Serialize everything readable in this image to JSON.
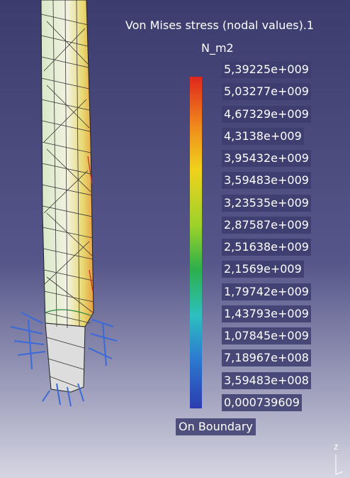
{
  "legend": {
    "title": "Von Mises stress (nodal values).1",
    "unit": "N_m2",
    "labels": [
      "5,39225e+009",
      "5,03277e+009",
      "4,67329e+009",
      "4,3138e+009",
      "3,95432e+009",
      "3,59483e+009",
      "3,23535e+009",
      "2,87587e+009",
      "2,51638e+009",
      "2,1569e+009",
      "1,79742e+009",
      "1,43793e+009",
      "1,07845e+009",
      "7,18967e+008",
      "3,59483e+008",
      "0,000739609"
    ],
    "footer": "On Boundary"
  },
  "triad": {
    "axis": "z"
  }
}
